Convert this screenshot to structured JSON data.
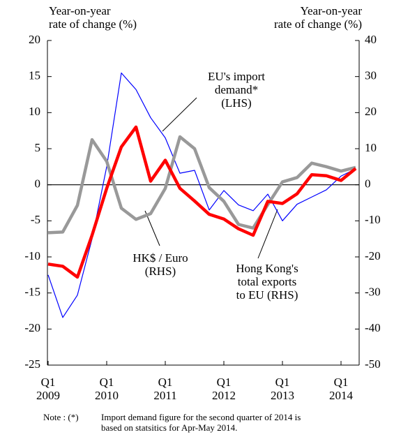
{
  "chart_data": {
    "type": "line",
    "y_label": "Year-on-year\nrate of change (%)",
    "y2_label": "Year-on-year\nrate of change (%)",
    "categories": [
      "Q1\n2009",
      null,
      null,
      null,
      "Q1\n2010",
      null,
      null,
      null,
      "Q1\n2011",
      null,
      null,
      null,
      "Q1\n2012",
      null,
      null,
      null,
      "Q1\n2013",
      null,
      null,
      null,
      "Q1\n2014",
      null
    ],
    "series": [
      {
        "name": "EU's import\ndemand*\n(LHS)",
        "color": "#0000ff",
        "width": 1.2,
        "values": [
          -12.5,
          -18.4,
          -15.3,
          -7.5,
          2.5,
          15.5,
          13.2,
          9.3,
          6.5,
          1.6,
          2.0,
          -3.5,
          -0.8,
          -2.8,
          -3.6,
          -1.3,
          -5.0,
          -2.7,
          -1.7,
          -0.7,
          1.2,
          2.2
        ]
      },
      {
        "name": "HK$ / Euro\n(RHS)",
        "color": "#999999",
        "width": 4.5,
        "axis": "y2",
        "values": [
          -13.3,
          -13.1,
          -5.7,
          12.5,
          6.5,
          -6.5,
          -9.6,
          -8,
          -1,
          13.3,
          10,
          -0.8,
          -4.6,
          -11,
          -12,
          -5.5,
          0.8,
          2,
          6,
          5,
          3.8,
          4.8
        ]
      },
      {
        "name": "Hong Kong's\ntotal exports\nto EU (RHS)",
        "color": "#ff0000",
        "width": 4.5,
        "axis": "y2",
        "values": [
          -22,
          -22.6,
          -25.6,
          -14,
          -1,
          10.5,
          16,
          1,
          6.8,
          -1,
          -4.5,
          -8.2,
          -9.5,
          -12.2,
          -14,
          -4.6,
          -5.2,
          -2.5,
          2.8,
          2.5,
          1.2,
          4.5
        ]
      }
    ],
    "ylim": [
      -25,
      20
    ],
    "yticks": [
      -25,
      -20,
      -15,
      -10,
      -5,
      0,
      5,
      10,
      15,
      20
    ],
    "y2lim": [
      -50,
      40
    ],
    "y2ticks": [
      -50,
      -40,
      -30,
      -20,
      -10,
      0,
      10,
      20,
      30,
      40
    ],
    "note_label": "Note : (*)",
    "note": "Import demand figure for the second quarter of 2014 is\nbased on statsitics for Apr-May 2014."
  }
}
